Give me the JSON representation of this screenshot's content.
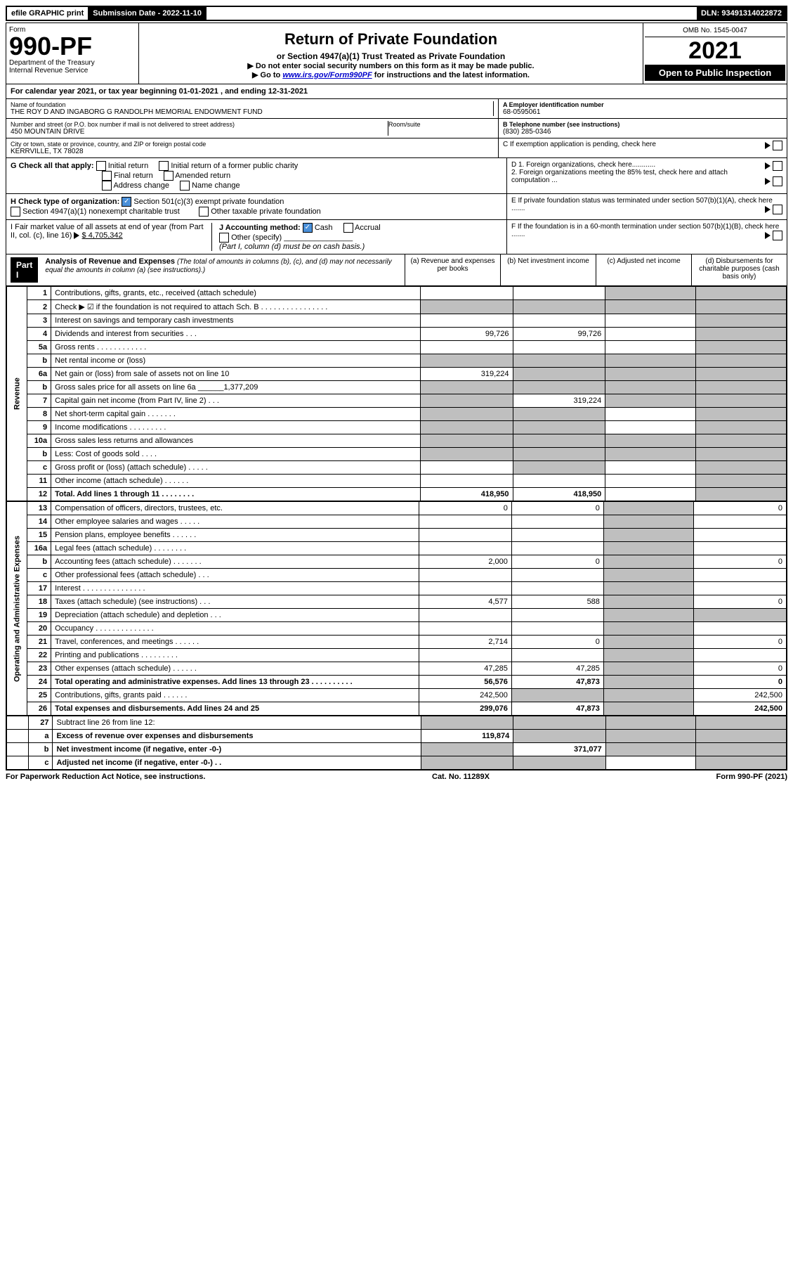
{
  "topbar": {
    "efile": "efile GRAPHIC print",
    "sub_label": "Submission Date - 2022-11-10",
    "dln": "DLN: 93491314022872"
  },
  "header": {
    "form_label": "Form",
    "form_num": "990-PF",
    "dept": "Department of the Treasury",
    "irs": "Internal Revenue Service",
    "title": "Return of Private Foundation",
    "subtitle": "or Section 4947(a)(1) Trust Treated as Private Foundation",
    "instr1": "▶ Do not enter social security numbers on this form as it may be made public.",
    "instr2_pre": "▶ Go to ",
    "instr2_link": "www.irs.gov/Form990PF",
    "instr2_post": " for instructions and the latest information.",
    "omb": "OMB No. 1545-0047",
    "year": "2021",
    "open": "Open to Public Inspection"
  },
  "calyear": "For calendar year 2021, or tax year beginning 01-01-2021             , and ending 12-31-2021",
  "info": {
    "name_label": "Name of foundation",
    "name": "THE ROY D AND INGABORG G RANDOLPH MEMORIAL ENDOWMENT FUND",
    "addr_label": "Number and street (or P.O. box number if mail is not delivered to street address)",
    "addr": "450 MOUNTAIN DRIVE",
    "room_label": "Room/suite",
    "city_label": "City or town, state or province, country, and ZIP or foreign postal code",
    "city": "KERRVILLE, TX  78028",
    "a_label": "A Employer identification number",
    "a_val": "68-0595061",
    "b_label": "B Telephone number (see instructions)",
    "b_val": "(830) 285-0346",
    "c_label": "C If exemption application is pending, check here"
  },
  "g": {
    "label": "G Check all that apply:",
    "opts": [
      "Initial return",
      "Initial return of a former public charity",
      "Final return",
      "Amended return",
      "Address change",
      "Name change"
    ]
  },
  "h": {
    "label": "H Check type of organization:",
    "opt1": "Section 501(c)(3) exempt private foundation",
    "opt2": "Section 4947(a)(1) nonexempt charitable trust",
    "opt3": "Other taxable private foundation"
  },
  "d": {
    "d1": "D 1. Foreign organizations, check here............",
    "d2": "2. Foreign organizations meeting the 85% test, check here and attach computation ..."
  },
  "e": "E  If private foundation status was terminated under section 507(b)(1)(A), check here .......",
  "i": {
    "label": "I Fair market value of all assets at end of year (from Part II, col. (c), line 16)",
    "val": "$  4,705,342"
  },
  "j": {
    "label": "J Accounting method:",
    "cash": "Cash",
    "accrual": "Accrual",
    "other": "Other (specify)",
    "note": "(Part I, column (d) must be on cash basis.)"
  },
  "f": "F  If the foundation is in a 60-month termination under section 507(b)(1)(B), check here .......",
  "part1": {
    "label": "Part I",
    "title": "Analysis of Revenue and Expenses",
    "note": "(The total of amounts in columns (b), (c), and (d) may not necessarily equal the amounts in column (a) (see instructions).)",
    "col_a": "(a)   Revenue and expenses per books",
    "col_b": "(b)   Net investment income",
    "col_c": "(c)   Adjusted net income",
    "col_d": "(d)   Disbursements for charitable purposes (cash basis only)"
  },
  "sidelabels": {
    "revenue": "Revenue",
    "expenses": "Operating and Administrative Expenses"
  },
  "rows": [
    {
      "n": "1",
      "d": "Contributions, gifts, grants, etc., received (attach schedule)",
      "a": "",
      "b": "",
      "c": "s",
      "dd": "s"
    },
    {
      "n": "2",
      "d": "Check ▶ ☑ if the foundation is not required to attach Sch. B       .  .  .  .  .  .  .  .  .  .  .  .  .  .  .  .",
      "a": "s",
      "b": "s",
      "c": "s",
      "dd": "s"
    },
    {
      "n": "3",
      "d": "Interest on savings and temporary cash investments",
      "a": "",
      "b": "",
      "c": "",
      "dd": "s"
    },
    {
      "n": "4",
      "d": "Dividends and interest from securities     .    .    .",
      "a": "99,726",
      "b": "99,726",
      "c": "",
      "dd": "s"
    },
    {
      "n": "5a",
      "d": "Gross rents       .    .    .    .    .    .    .    .    .    .    .    .",
      "a": "",
      "b": "",
      "c": "",
      "dd": "s"
    },
    {
      "n": "b",
      "d": "Net rental income or (loss)",
      "a": "s",
      "b": "s",
      "c": "s",
      "dd": "s"
    },
    {
      "n": "6a",
      "d": "Net gain or (loss) from sale of assets not on line 10",
      "a": "319,224",
      "b": "s",
      "c": "s",
      "dd": "s"
    },
    {
      "n": "b",
      "d": "Gross sales price for all assets on line 6a ______1,377,209",
      "a": "s",
      "b": "s",
      "c": "s",
      "dd": "s"
    },
    {
      "n": "7",
      "d": "Capital gain net income (from Part IV, line 2)    .    .    .",
      "a": "s",
      "b": "319,224",
      "c": "s",
      "dd": "s"
    },
    {
      "n": "8",
      "d": "Net short-term capital gain   .    .    .    .    .    .    .",
      "a": "s",
      "b": "s",
      "c": "",
      "dd": "s"
    },
    {
      "n": "9",
      "d": "Income modifications  .    .    .    .    .    .    .    .    .",
      "a": "s",
      "b": "s",
      "c": "",
      "dd": "s"
    },
    {
      "n": "10a",
      "d": "Gross sales less returns and allowances",
      "a": "s",
      "b": "s",
      "c": "s",
      "dd": "s"
    },
    {
      "n": "b",
      "d": "Less: Cost of goods sold     .    .    .    .",
      "a": "s",
      "b": "s",
      "c": "s",
      "dd": "s"
    },
    {
      "n": "c",
      "d": "Gross profit or (loss) (attach schedule)      .    .    .    .    .",
      "a": "",
      "b": "s",
      "c": "",
      "dd": "s"
    },
    {
      "n": "11",
      "d": "Other income (attach schedule)     .    .    .    .    .    .",
      "a": "",
      "b": "",
      "c": "",
      "dd": "s"
    },
    {
      "n": "12",
      "d": "Total. Add lines 1 through 11    .    .    .    .    .    .    .    .",
      "a": "418,950",
      "b": "418,950",
      "c": "",
      "dd": "s",
      "bold": true
    }
  ],
  "exp_rows": [
    {
      "n": "13",
      "d": "Compensation of officers, directors, trustees, etc.",
      "a": "0",
      "b": "0",
      "c": "s",
      "dd": "0"
    },
    {
      "n": "14",
      "d": "Other employee salaries and wages     .    .    .    .    .",
      "a": "",
      "b": "",
      "c": "s",
      "dd": ""
    },
    {
      "n": "15",
      "d": "Pension plans, employee benefits   .    .    .    .    .    .",
      "a": "",
      "b": "",
      "c": "s",
      "dd": ""
    },
    {
      "n": "16a",
      "d": "Legal fees (attach schedule)  .    .    .    .    .    .    .    .",
      "a": "",
      "b": "",
      "c": "s",
      "dd": ""
    },
    {
      "n": "b",
      "d": "Accounting fees (attach schedule)  .    .    .    .    .    .    .",
      "a": "2,000",
      "b": "0",
      "c": "s",
      "dd": "0"
    },
    {
      "n": "c",
      "d": "Other professional fees (attach schedule)     .    .    .",
      "a": "",
      "b": "",
      "c": "s",
      "dd": ""
    },
    {
      "n": "17",
      "d": "Interest  .    .    .    .    .    .    .    .    .    .    .    .    .    .    .",
      "a": "",
      "b": "",
      "c": "s",
      "dd": ""
    },
    {
      "n": "18",
      "d": "Taxes (attach schedule) (see instructions)      .    .    .",
      "a": "4,577",
      "b": "588",
      "c": "s",
      "dd": "0"
    },
    {
      "n": "19",
      "d": "Depreciation (attach schedule) and depletion    .    .    .",
      "a": "",
      "b": "",
      "c": "s",
      "dd": "s"
    },
    {
      "n": "20",
      "d": "Occupancy  .    .    .    .    .    .    .    .    .    .    .    .    .    .",
      "a": "",
      "b": "",
      "c": "s",
      "dd": ""
    },
    {
      "n": "21",
      "d": "Travel, conferences, and meetings  .    .    .    .    .    .",
      "a": "2,714",
      "b": "0",
      "c": "s",
      "dd": "0"
    },
    {
      "n": "22",
      "d": "Printing and publications  .    .    .    .    .    .    .    .    .",
      "a": "",
      "b": "",
      "c": "s",
      "dd": ""
    },
    {
      "n": "23",
      "d": "Other expenses (attach schedule)  .    .    .    .    .    .",
      "a": "47,285",
      "b": "47,285",
      "c": "s",
      "dd": "0"
    },
    {
      "n": "24",
      "d": "Total operating and administrative expenses. Add lines 13 through 23    .    .    .    .    .    .    .    .    .    .",
      "a": "56,576",
      "b": "47,873",
      "c": "s",
      "dd": "0",
      "bold": true
    },
    {
      "n": "25",
      "d": "Contributions, gifts, grants paid      .    .    .    .    .    .",
      "a": "242,500",
      "b": "s",
      "c": "s",
      "dd": "242,500"
    },
    {
      "n": "26",
      "d": "Total expenses and disbursements. Add lines 24 and 25",
      "a": "299,076",
      "b": "47,873",
      "c": "s",
      "dd": "242,500",
      "bold": true
    }
  ],
  "bottom_rows": [
    {
      "n": "27",
      "d": "Subtract line 26 from line 12:",
      "a": "s",
      "b": "s",
      "c": "s",
      "dd": "s"
    },
    {
      "n": "a",
      "d": "Excess of revenue over expenses and disbursements",
      "a": "119,874",
      "b": "s",
      "c": "s",
      "dd": "s",
      "bold": true
    },
    {
      "n": "b",
      "d": "Net investment income (if negative, enter -0-)",
      "a": "s",
      "b": "371,077",
      "c": "s",
      "dd": "s",
      "bold": true
    },
    {
      "n": "c",
      "d": "Adjusted net income (if negative, enter -0-)    .    .",
      "a": "s",
      "b": "s",
      "c": "",
      "dd": "s",
      "bold": true
    }
  ],
  "footer": {
    "left": "For Paperwork Reduction Act Notice, see instructions.",
    "mid": "Cat. No. 11289X",
    "right": "Form 990-PF (2021)"
  }
}
